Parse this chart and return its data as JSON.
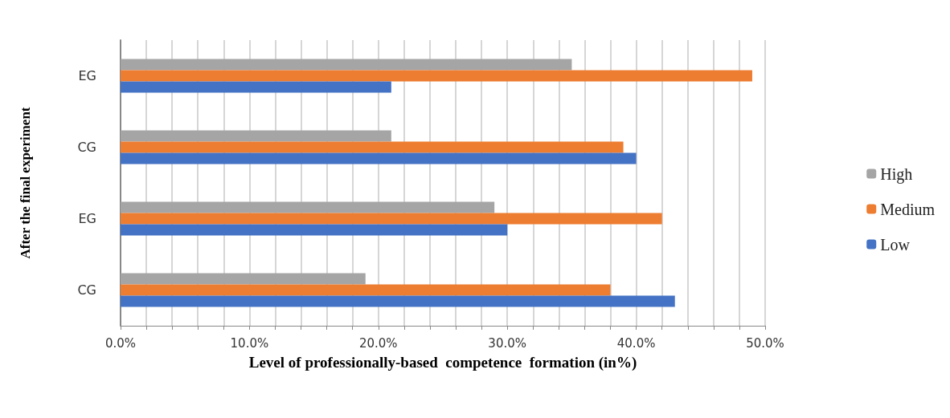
{
  "chart_data": {
    "type": "bar",
    "orientation": "horizontal",
    "ylabel": "After the final experiment",
    "xlabel": "Level of professionally-based  competence  formation (in%)",
    "categories": [
      "EG",
      "CG",
      "EG",
      "CG"
    ],
    "series": [
      {
        "name": "High",
        "color": "#a5a5a5",
        "values": [
          35,
          21,
          29,
          19
        ]
      },
      {
        "name": "Medium",
        "color": "#ed7d31",
        "values": [
          49,
          39,
          42,
          38
        ]
      },
      {
        "name": "Low",
        "color": "#4472c4",
        "values": [
          21,
          40,
          30,
          43
        ]
      }
    ],
    "xlim": [
      0,
      50
    ],
    "xticks": [
      {
        "value": 0,
        "label": "0.0%"
      },
      {
        "value": 2,
        "label": null
      },
      {
        "value": 4,
        "label": null
      },
      {
        "value": 6,
        "label": null
      },
      {
        "value": 8,
        "label": null
      },
      {
        "value": 10,
        "label": "10.0%"
      },
      {
        "value": 12,
        "label": null
      },
      {
        "value": 14,
        "label": null
      },
      {
        "value": 16,
        "label": null
      },
      {
        "value": 18,
        "label": null
      },
      {
        "value": 20,
        "label": "20.0%"
      },
      {
        "value": 22,
        "label": null
      },
      {
        "value": 24,
        "label": null
      },
      {
        "value": 26,
        "label": null
      },
      {
        "value": 28,
        "label": null
      },
      {
        "value": 30,
        "label": "30.0%"
      },
      {
        "value": 32,
        "label": null
      },
      {
        "value": 34,
        "label": null
      },
      {
        "value": 36,
        "label": null
      },
      {
        "value": 38,
        "label": null
      },
      {
        "value": 40,
        "label": "40.0%"
      },
      {
        "value": 42,
        "label": null
      },
      {
        "value": 44,
        "label": null
      },
      {
        "value": 46,
        "label": null
      },
      {
        "value": 48,
        "label": null
      },
      {
        "value": 50,
        "label": "50.0%"
      }
    ],
    "grid": "x",
    "legend": "right"
  }
}
